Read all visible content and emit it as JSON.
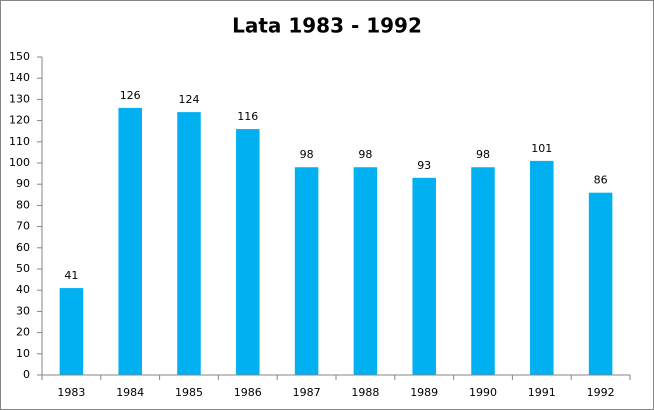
{
  "chart_data": {
    "type": "bar",
    "title": "Lata 1983 - 1992",
    "categories": [
      "1983",
      "1984",
      "1985",
      "1986",
      "1987",
      "1988",
      "1989",
      "1990",
      "1991",
      "1992"
    ],
    "values": [
      41,
      126,
      124,
      116,
      98,
      98,
      93,
      98,
      101,
      86
    ],
    "color": "#00b0f0",
    "ylim": [
      0,
      150
    ],
    "yticks": [
      0,
      10,
      20,
      30,
      40,
      50,
      60,
      70,
      80,
      90,
      100,
      110,
      120,
      130,
      140,
      150
    ],
    "grid": false,
    "data_labels": true
  }
}
